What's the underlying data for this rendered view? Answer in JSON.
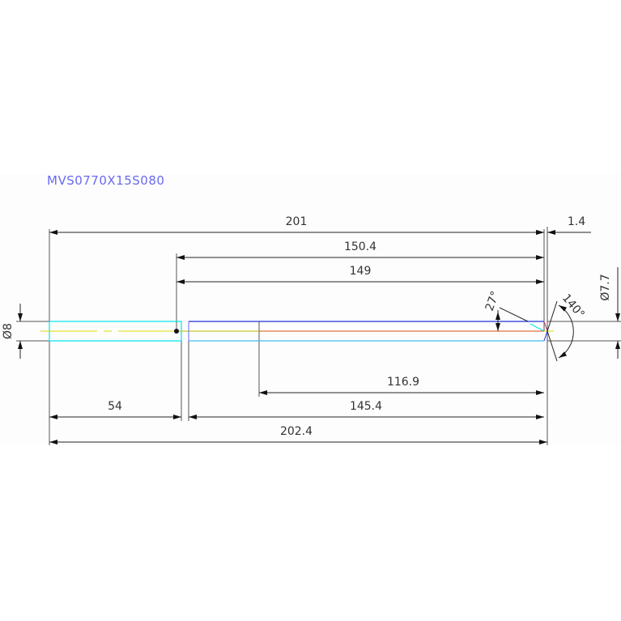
{
  "title": "MVS0770X15S080",
  "dimensions": {
    "overall_length": "201",
    "tip_offset": "1.4",
    "length_150": "150.4",
    "length_149": "149",
    "length_116": "116.9",
    "shank_length": "54",
    "length_145": "145.4",
    "total_length": "202.4",
    "shank_diameter": "Ø8",
    "tip_diameter": "Ø7.7",
    "helix_angle": "27°",
    "point_angle": "140°"
  },
  "colors": {
    "title": "#6a6af0",
    "shank_outline": "#00e5ee",
    "body_outline": "#2233dd",
    "centerline": "#dddd00",
    "flute_line": "#e05010",
    "dimension": "#222222"
  }
}
